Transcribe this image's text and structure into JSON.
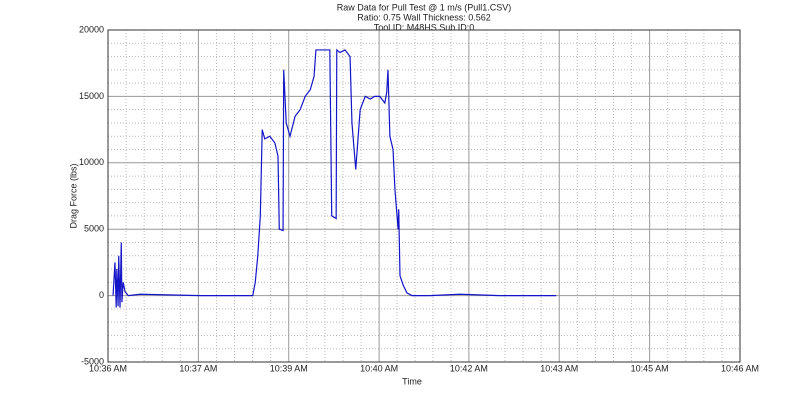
{
  "chart_data": {
    "type": "line",
    "title": "Raw Data for Pull Test @ 1 m/s (Pull1.CSV)",
    "subtitle": "Ratio: 0.75 Wall Thickness: 0.562",
    "caption": "Tool ID: M48HS Sub ID:0",
    "xlabel": "Time",
    "ylabel": "Drag Force (lbs)",
    "xlim": [
      636,
      646
    ],
    "ylim": [
      -5000,
      20000
    ],
    "xticks": [
      {
        "value": 636,
        "label": "10:36 AM"
      },
      {
        "value": 637.43,
        "label": "10:37 AM"
      },
      {
        "value": 638.86,
        "label": "10:39 AM"
      },
      {
        "value": 640.29,
        "label": "10:40 AM"
      },
      {
        "value": 641.71,
        "label": "10:42 AM"
      },
      {
        "value": 643.14,
        "label": "10:43 AM"
      },
      {
        "value": 644.57,
        "label": "10:45 AM"
      },
      {
        "value": 646,
        "label": "10:46 AM"
      }
    ],
    "yticks": [
      -5000,
      0,
      5000,
      10000,
      15000,
      20000
    ],
    "grid": true,
    "x": [
      636.08,
      636.11,
      636.13,
      636.14,
      636.16,
      636.17,
      636.19,
      636.21,
      636.22,
      636.24,
      636.27,
      636.32,
      636.51,
      637.46,
      638.29,
      638.33,
      638.37,
      638.41,
      638.44,
      638.48,
      638.56,
      638.64,
      638.69,
      638.71,
      638.77,
      638.78,
      638.82,
      638.88,
      638.96,
      639.04,
      639.12,
      639.2,
      639.26,
      639.29,
      639.35,
      639.51,
      639.54,
      639.61,
      639.62,
      639.67,
      639.75,
      639.83,
      639.86,
      639.92,
      639.99,
      640.07,
      640.15,
      640.22,
      640.3,
      640.38,
      640.41,
      640.43,
      640.46,
      640.51,
      640.54,
      640.59,
      640.6,
      640.62,
      640.67,
      640.73,
      640.81,
      641.09,
      641.57,
      642.2,
      643.09
    ],
    "series": [
      {
        "color": "#1414c8",
        "values": [
          0,
          2500,
          -900,
          2000,
          -800,
          3000,
          -900,
          4000,
          -500,
          1000,
          300,
          0,
          100,
          0,
          0,
          1000,
          3000,
          6000,
          12500,
          11800,
          12000,
          11500,
          10500,
          5000,
          4900,
          17000,
          13000,
          12000,
          13500,
          14000,
          15000,
          15500,
          16500,
          18500,
          18500,
          18500,
          6000,
          5800,
          18500,
          18300,
          18500,
          18000,
          13000,
          9500,
          14000,
          15000,
          14800,
          15000,
          15000,
          14500,
          15300,
          17000,
          12000,
          11000,
          8000,
          5000,
          6500,
          1500,
          800,
          200,
          0,
          0,
          100,
          0,
          0
        ]
      }
    ]
  }
}
